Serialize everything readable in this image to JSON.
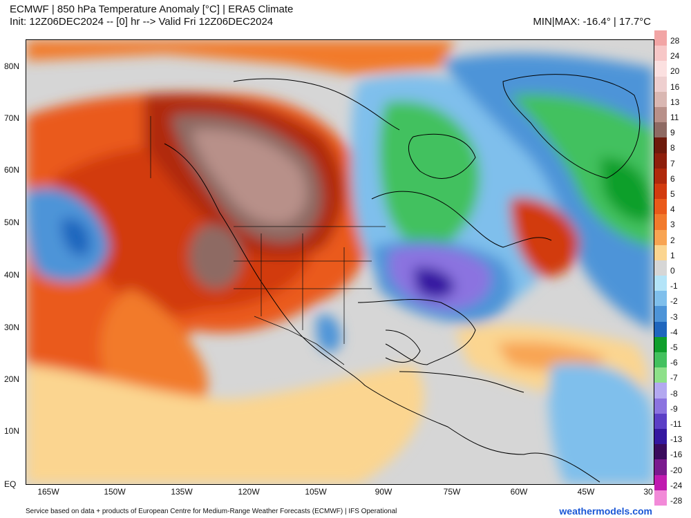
{
  "header": {
    "title": "ECMWF | 850 hPa Temperature Anomaly [°C] | ERA5 Climate",
    "init_line": "Init: 12Z06DEC2024 -- [0] hr --> Valid Fri 12Z06DEC2024",
    "minmax": "MIN|MAX: -16.4° | 17.7°C"
  },
  "axes": {
    "lat_labels": [
      "80N",
      "70N",
      "60N",
      "50N",
      "40N",
      "30N",
      "20N",
      "10N",
      "EQ"
    ],
    "lon_labels": [
      "165W",
      "150W",
      "135W",
      "120W",
      "105W",
      "90W",
      "75W",
      "60W",
      "45W",
      "30"
    ]
  },
  "colorbar": {
    "labels": [
      "28",
      "24",
      "20",
      "16",
      "13",
      "11",
      "9",
      "8",
      "7",
      "6",
      "5",
      "4",
      "3",
      "2",
      "1",
      "0",
      "-1",
      "-2",
      "-3",
      "-4",
      "-5",
      "-6",
      "-7",
      "-8",
      "-9",
      "-11",
      "-13",
      "-16",
      "-20",
      "-24",
      "-28"
    ],
    "colors": [
      "#f2a5a5",
      "#f7c7c7",
      "#fbe0e0",
      "#eecfcf",
      "#d9b7b2",
      "#b89089",
      "#8e6a63",
      "#6e1a0c",
      "#8e1f0c",
      "#b0290c",
      "#d23a0e",
      "#ea5a1a",
      "#f27a2c",
      "#f8a452",
      "#fbd590",
      "#d6d6d6",
      "#b4e4f8",
      "#7fbfec",
      "#4d94d8",
      "#1f66be",
      "#0f9f2c",
      "#43c15e",
      "#8ee089",
      "#b3a8f0",
      "#8b73e0",
      "#5b3fc6",
      "#3418a0",
      "#3a0c5e",
      "#7a1a8e",
      "#c01ab0",
      "#f28ad8"
    ]
  },
  "footer": {
    "credit": "Service based on data + products of European Centre for Medium-Range Weather Forecasts (ECMWF) | IFS Operational",
    "site": "weathermodels.com"
  }
}
